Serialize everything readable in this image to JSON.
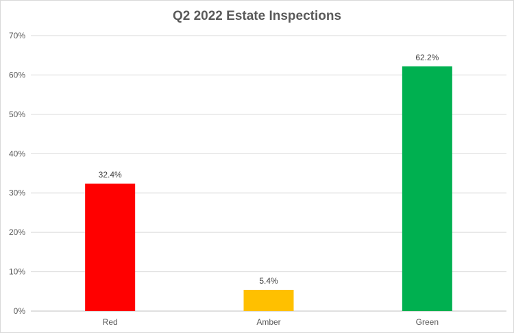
{
  "chart_data": {
    "type": "bar",
    "title": "Q2 2022 Estate Inspections",
    "categories": [
      "Red",
      "Amber",
      "Green"
    ],
    "values": [
      32.4,
      5.4,
      62.2
    ],
    "value_labels": [
      "32.4%",
      "5.4%",
      "62.2%"
    ],
    "colors": [
      "#ff0000",
      "#ffc000",
      "#00b050"
    ],
    "xlabel": "",
    "ylabel": "",
    "ylim": [
      0,
      70
    ],
    "yticks": [
      0,
      10,
      20,
      30,
      40,
      50,
      60,
      70
    ],
    "ytick_labels": [
      "0%",
      "10%",
      "20%",
      "30%",
      "40%",
      "50%",
      "60%",
      "70%"
    ],
    "grid": true,
    "legend": "none"
  }
}
